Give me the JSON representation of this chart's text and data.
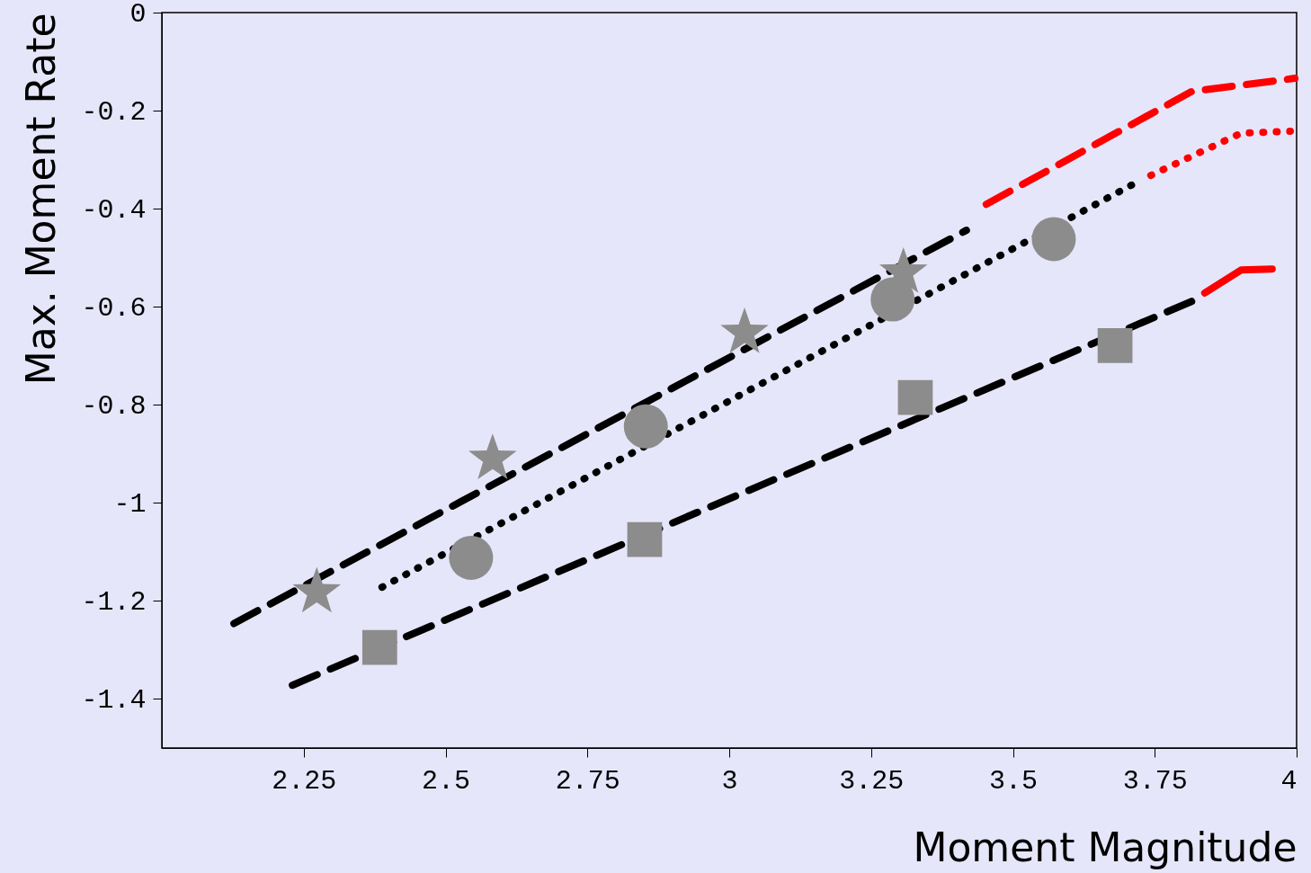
{
  "chart_data": {
    "type": "line",
    "xlabel": "Moment Magnitude",
    "ylabel": "Max. Moment Rate",
    "xlim": [
      2,
      4
    ],
    "ylim": [
      -1.5,
      0
    ],
    "xticks": [
      2.25,
      2.5,
      2.75,
      3,
      3.25,
      3.5,
      3.75,
      4
    ],
    "yticks": [
      -1.4,
      -1.2,
      -1,
      -0.8,
      -0.6,
      -0.4,
      -0.2,
      0
    ],
    "grid": false,
    "series": [
      {
        "line_style": "dashed",
        "color": "#000000",
        "x": [
          2.127,
          3.418
        ],
        "values": [
          -1.246,
          -0.444
        ]
      },
      {
        "line_style": "dashed",
        "color": "#ff0000",
        "x": [
          3.453,
          3.815,
          3.997
        ],
        "values": [
          -0.391,
          -0.161,
          -0.134
        ]
      },
      {
        "line_style": "dotted",
        "color": "#000000",
        "x": [
          2.388,
          3.712
        ],
        "values": [
          -1.172,
          -0.35
        ]
      },
      {
        "line_style": "dotted",
        "color": "#ff0000",
        "x": [
          3.743,
          3.902,
          3.989
        ],
        "values": [
          -0.332,
          -0.246,
          -0.242
        ]
      },
      {
        "line_style": "dashed",
        "color": "#000000",
        "x": [
          2.23,
          3.815
        ],
        "values": [
          -1.372,
          -0.589
        ]
      },
      {
        "line_style": "solid",
        "color": "#ff0000",
        "x": [
          3.838,
          3.902,
          3.957
        ],
        "values": [
          -0.572,
          -0.525,
          -0.523
        ]
      },
      {
        "type": "scatter",
        "marker": "star",
        "color": "#8c8c8c",
        "x": [
          2.273,
          2.583,
          3.027,
          3.307
        ],
        "values": [
          -1.182,
          -0.91,
          -0.653,
          -0.53
        ]
      },
      {
        "type": "scatter",
        "marker": "circle",
        "color": "#8c8c8c",
        "x": [
          2.545,
          2.853,
          3.288,
          3.572
        ],
        "values": [
          -1.112,
          -0.844,
          -0.585,
          -0.462
        ]
      },
      {
        "type": "scatter",
        "marker": "square",
        "color": "#8c8c8c",
        "x": [
          2.384,
          2.851,
          3.328,
          3.68
        ],
        "values": [
          -1.295,
          -1.075,
          -0.785,
          -0.679
        ]
      }
    ]
  }
}
